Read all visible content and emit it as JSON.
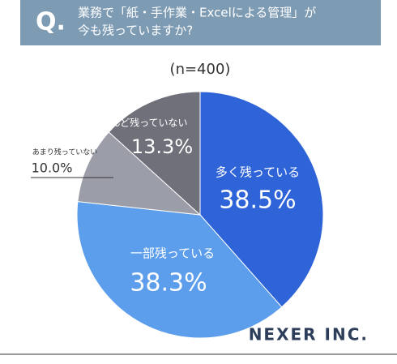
{
  "chart_data": {
    "type": "pie",
    "question_mark": "Q.",
    "title_lines": [
      "業務で「紙・手作業・Excelによる管理」が",
      "今も残っていますか?"
    ],
    "subtitle": "(n=400)",
    "categories": [
      "多く残っている",
      "一部残っている",
      "あまり残っていない",
      "ほとんど残っていない"
    ],
    "values": [
      38.5,
      38.3,
      10.0,
      13.3
    ],
    "value_labels": [
      "38.5%",
      "38.3%",
      "10.0%",
      "13.3%"
    ],
    "colors": [
      "#2f64d8",
      "#5c9eec",
      "#9b9da8",
      "#6f7079"
    ],
    "brand": "NEXER INC."
  }
}
